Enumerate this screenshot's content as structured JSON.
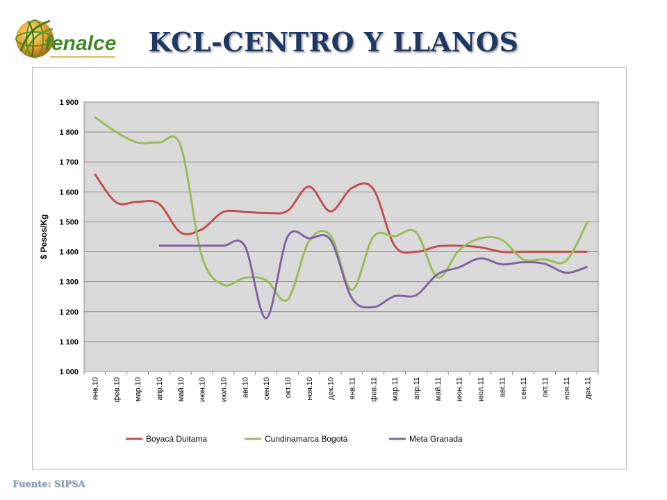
{
  "brand": {
    "name": "fenalce"
  },
  "title": "KCL-CENTRO Y LLANOS",
  "footer": "Fuente: SIPSA",
  "colors": {
    "title": "#1f3864",
    "plot_bg": "#d9d9d9",
    "boyaca": "#c0504d",
    "cundinamarca": "#9bbb59",
    "meta": "#8064a2"
  },
  "chart_data": {
    "type": "line",
    "ylabel": "$ Pesos/Kg",
    "xlabel": "",
    "ylim": [
      1000,
      1900
    ],
    "yticks": [
      1000,
      1100,
      1200,
      1300,
      1400,
      1500,
      1600,
      1700,
      1800,
      1900
    ],
    "ytick_labels": [
      "1 000",
      "1 100",
      "1 200",
      "1 300",
      "1 400",
      "1 500",
      "1 600",
      "1 700",
      "1 800",
      "1 900"
    ],
    "grid": true,
    "legend": "bottom",
    "categories": [
      "янв.10",
      "фев.10",
      "мар.10",
      "апр.10",
      "май.10",
      "июн.10",
      "июл.10",
      "авг.10",
      "сен.10",
      "окт.10",
      "ноя.10",
      "дек.10",
      "янв.11",
      "фев.11",
      "мар.11",
      "апр.11",
      "май.11",
      "июн.11",
      "июл.11",
      "авг.11",
      "сен.11",
      "окт.11",
      "ноя.11",
      "дек.11"
    ],
    "series": [
      {
        "name": "Boyacá Duitama",
        "color": "#c0504d",
        "values": [
          1660,
          1565,
          1567,
          1560,
          1465,
          1475,
          1533,
          1533,
          1530,
          1537,
          1618,
          1535,
          1613,
          1610,
          1420,
          1400,
          1418,
          1420,
          1415,
          1400,
          1400,
          1400,
          1400,
          1400
        ]
      },
      {
        "name": "Cundinamarca Bogotá",
        "color": "#9bbb59",
        "values": [
          1850,
          1800,
          1765,
          1765,
          1755,
          1385,
          1290,
          1313,
          1305,
          1240,
          1435,
          1455,
          1273,
          1450,
          1452,
          1465,
          1315,
          1405,
          1445,
          1440,
          1375,
          1375,
          1370,
          1500
        ]
      },
      {
        "name": "Meta Granada",
        "color": "#8064a2",
        "values": [
          null,
          null,
          null,
          1420,
          1420,
          1420,
          1420,
          1420,
          1178,
          1450,
          1445,
          1440,
          1245,
          1215,
          1252,
          1255,
          1325,
          1348,
          1378,
          1358,
          1365,
          1360,
          1330,
          1350
        ]
      }
    ]
  }
}
